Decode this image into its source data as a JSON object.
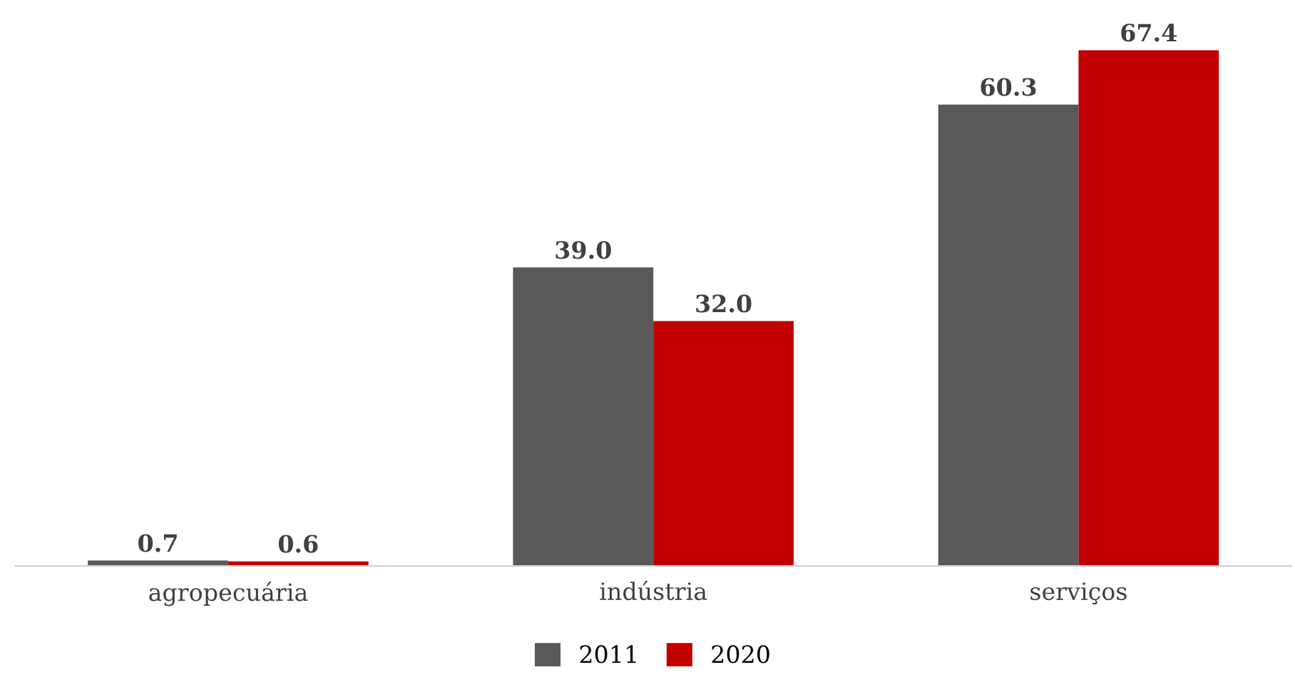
{
  "chart_data": {
    "type": "bar",
    "categories": [
      "agropecuária",
      "indústria",
      "serviços"
    ],
    "series": [
      {
        "name": "2011",
        "color": "#595959",
        "values": [
          0.7,
          39.0,
          60.3
        ],
        "value_labels": [
          "0.7",
          "39.0",
          "60.3"
        ]
      },
      {
        "name": "2020",
        "color": "#c00000",
        "values": [
          0.6,
          32.0,
          67.4
        ],
        "value_labels": [
          "0.6",
          "32.0",
          "67.4"
        ]
      }
    ],
    "tick_labels": "x",
    "legend": "bottom",
    "grid": false
  }
}
